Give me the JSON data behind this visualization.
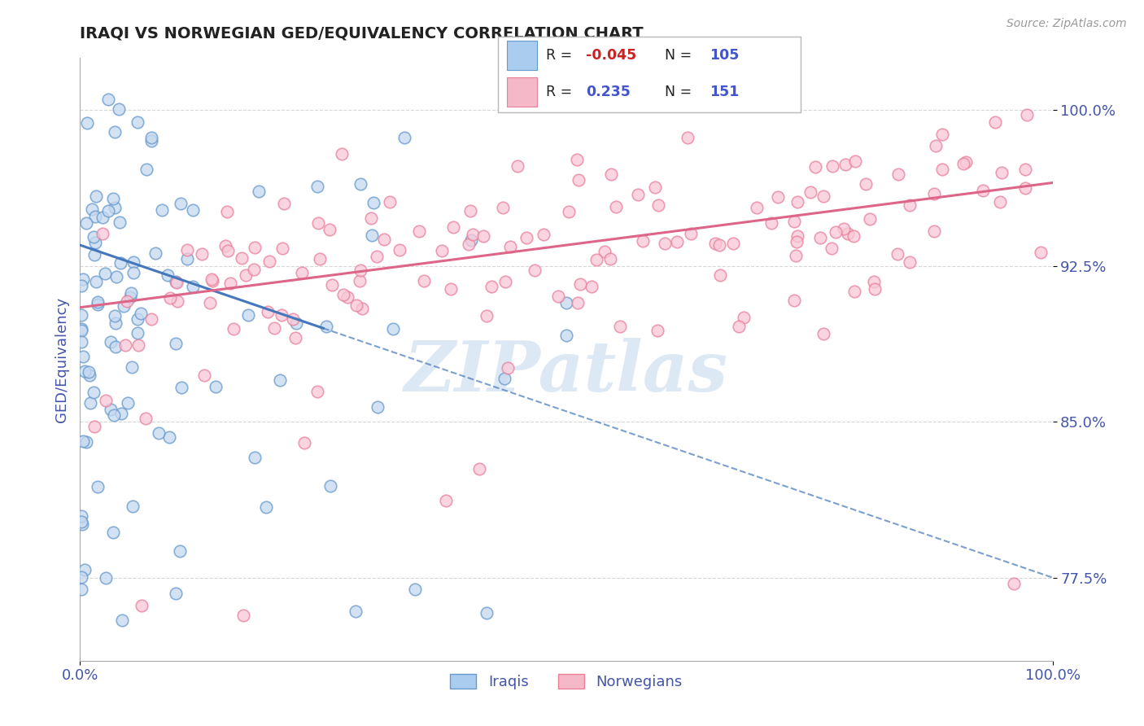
{
  "title": "IRAQI VS NORWEGIAN GED/EQUIVALENCY CORRELATION CHART",
  "source_text": "Source: ZipAtlas.com",
  "ylabel": "GED/Equivalency",
  "xmin": 0.0,
  "xmax": 1.0,
  "ymin": 0.735,
  "ymax": 1.025,
  "yticks": [
    0.775,
    0.85,
    0.925,
    1.0
  ],
  "ytick_labels": [
    "77.5%",
    "85.0%",
    "92.5%",
    "100.0%"
  ],
  "xtick_labels": [
    "0.0%",
    "100.0%"
  ],
  "xticks": [
    0.0,
    1.0
  ],
  "iraqi_R": -0.045,
  "iraqi_N": 105,
  "norwegian_R": 0.235,
  "norwegian_N": 151,
  "iraqi_fill_color": "#c5d9f0",
  "iraqi_edge_color": "#6699cc",
  "norwegian_fill_color": "#f9c8d8",
  "norwegian_edge_color": "#e8809a",
  "iraqi_trend_color": "#4477bb",
  "norwegian_trend_color": "#dd6688",
  "background_color": "#ffffff",
  "grid_color": "#cccccc",
  "axis_label_color": "#4455aa",
  "watermark_text": "ZIPatlas",
  "watermark_color": "#dde8f5",
  "legend_r1_val": "-0.045",
  "legend_r1_n": "105",
  "legend_r2_val": "0.235",
  "legend_r2_n": "151",
  "legend_r_color": "#cc2222",
  "legend_n_color": "#4455cc",
  "legend_blue_fill": "#aaccee",
  "legend_pink_fill": "#f4b8c8"
}
